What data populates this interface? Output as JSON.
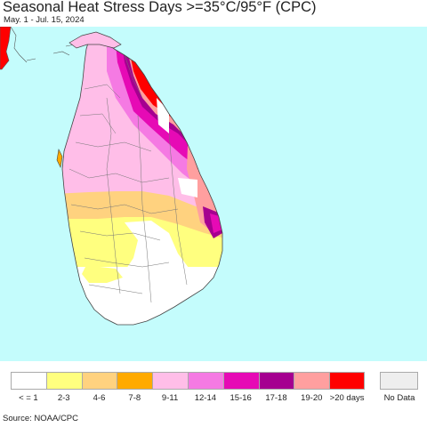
{
  "title": "Seasonal Heat Stress Days >=35°C/95°F (CPC)",
  "subtitle": "May. 1 - Jul. 15, 2024",
  "source": "Source: NOAA/CPC",
  "colors": {
    "ocean": "#c4fcfc",
    "land_zero": "#ffffff",
    "outline": "#555555"
  },
  "legend": {
    "items": [
      {
        "label": "< = 1",
        "color": "#ffffff"
      },
      {
        "label": "2-3",
        "color": "#ffff7f"
      },
      {
        "label": "4-6",
        "color": "#ffd27f"
      },
      {
        "label": "7-8",
        "color": "#ffaa00"
      },
      {
        "label": "9-11",
        "color": "#ffbee8"
      },
      {
        "label": "12-14",
        "color": "#f57ae3"
      },
      {
        "label": "15-16",
        "color": "#e60ab5"
      },
      {
        "label": "17-18",
        "color": "#a50090"
      },
      {
        "label": "19-20",
        "color": "#ff9f9f"
      },
      {
        "label": ">20 days",
        "color": "#ff0000"
      }
    ],
    "nodata": {
      "label": "No Data",
      "color": "#eeeeee"
    }
  }
}
